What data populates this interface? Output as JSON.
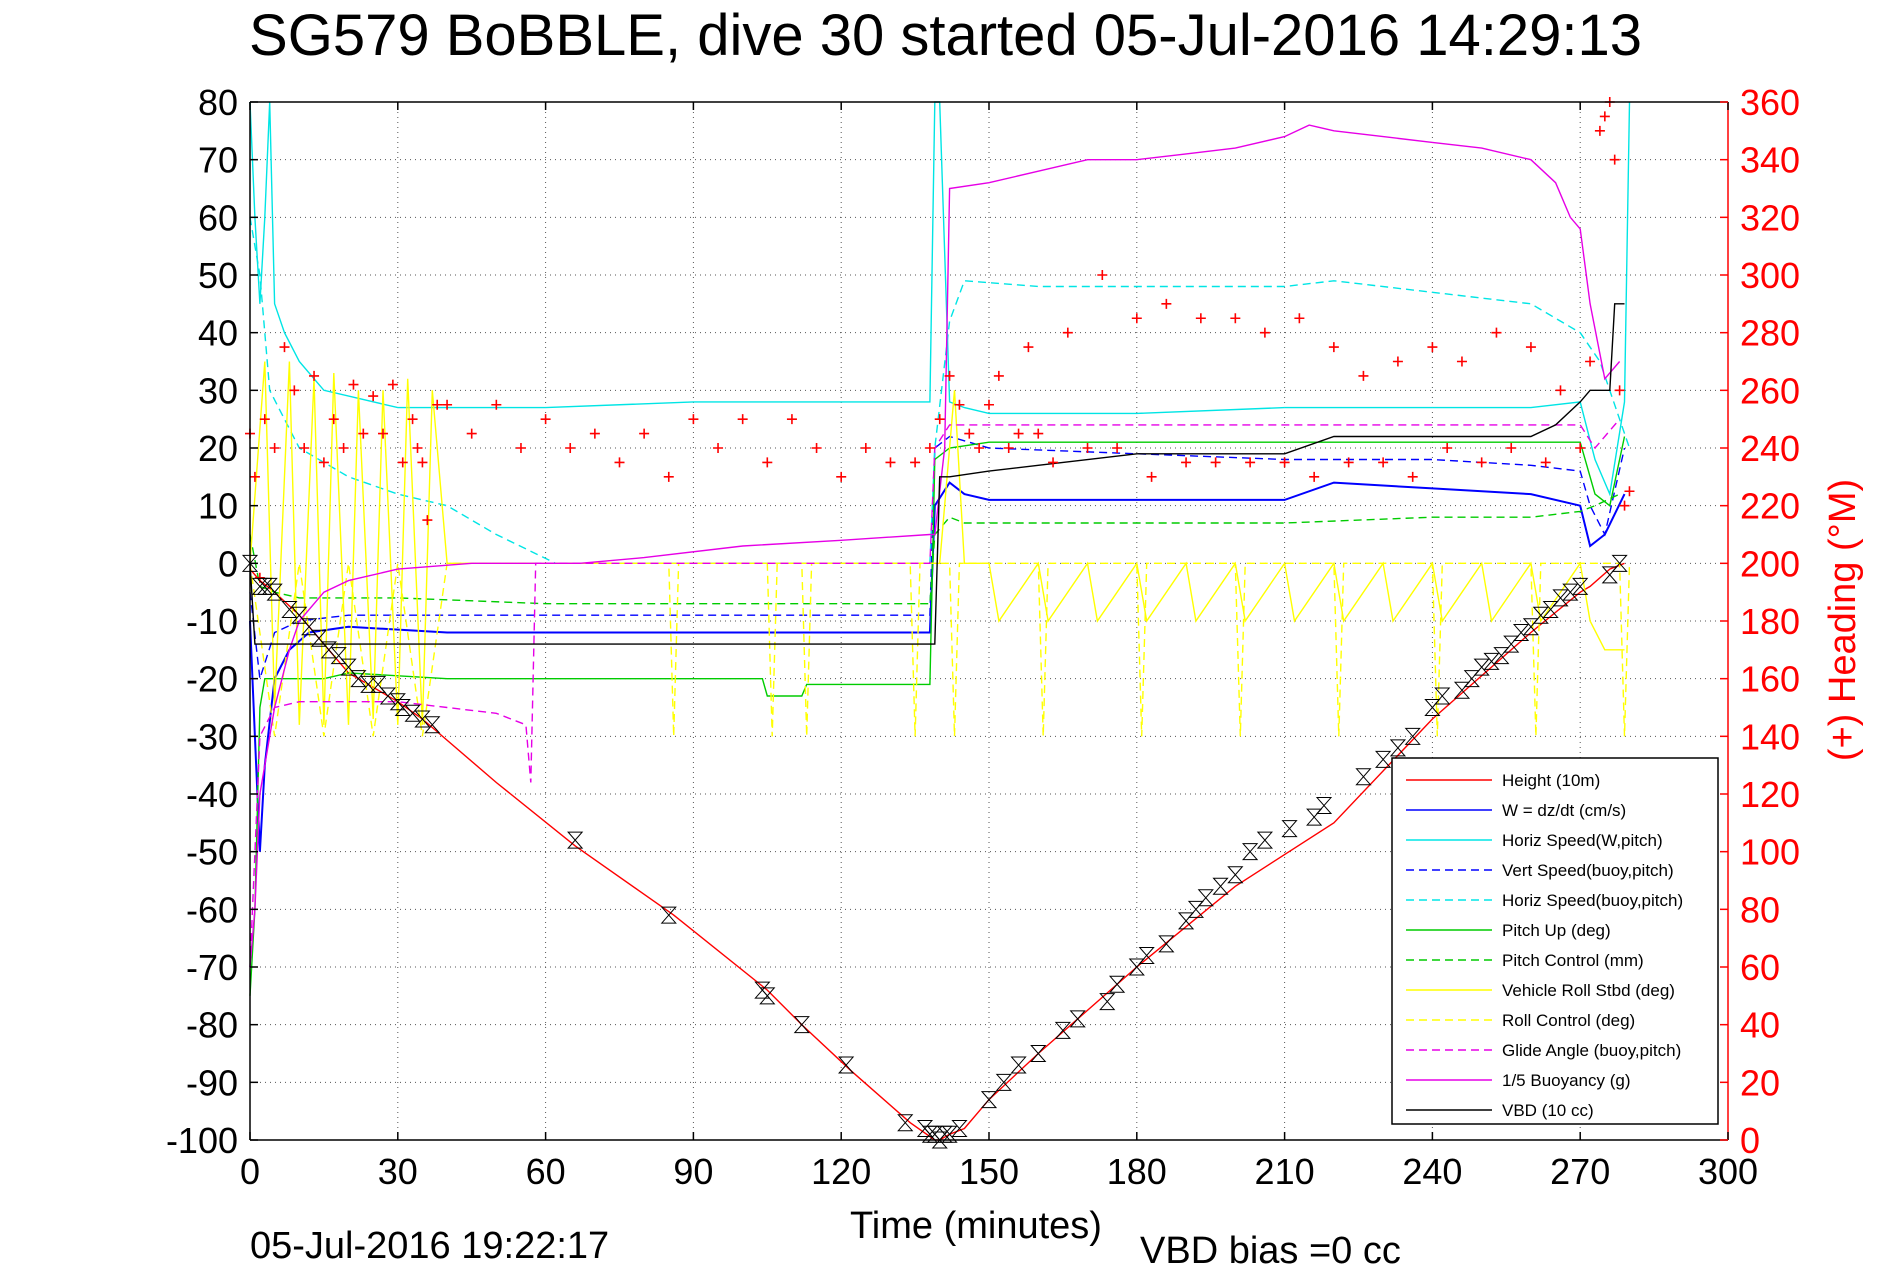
{
  "chart_data": {
    "type": "line",
    "title": "SG579 BoBBLE, dive 30 started 05-Jul-2016 14:29:13",
    "xlabel": "Time (minutes)",
    "ylabel": "",
    "y2label": "(+) Heading (°M)",
    "footer_left": "05-Jul-2016 19:22:17",
    "footer_right": "VBD bias =0 cc",
    "xlim": [
      0,
      300
    ],
    "ylim": [
      -100,
      80
    ],
    "y2lim": [
      0,
      360
    ],
    "xticks": [
      0,
      30,
      60,
      90,
      120,
      150,
      180,
      210,
      240,
      270,
      300
    ],
    "yticks": [
      80,
      70,
      60,
      50,
      40,
      30,
      20,
      10,
      0,
      -10,
      -20,
      -30,
      -40,
      -50,
      -60,
      -70,
      -80,
      -90,
      -100
    ],
    "y2ticks": [
      360,
      340,
      320,
      300,
      280,
      260,
      240,
      220,
      200,
      180,
      160,
      140,
      120,
      100,
      80,
      60,
      40,
      20,
      0
    ],
    "grid": true,
    "legend_position": "bottom-right",
    "series": [
      {
        "name": "Height (10m)",
        "color": "#ff0000",
        "dash": "solid",
        "x": [
          0,
          2,
          5,
          10,
          20,
          30,
          35,
          50,
          66,
          86,
          105,
          112,
          122,
          134,
          139,
          140,
          142,
          145,
          150,
          160,
          180,
          200,
          220,
          240,
          260,
          270,
          272,
          276,
          279
        ],
        "y": [
          -1,
          -3,
          -5,
          -9,
          -19,
          -24,
          -27,
          -38,
          -49,
          -61,
          -74,
          -80,
          -88,
          -97,
          -100,
          -100,
          -99,
          -98,
          -93,
          -85,
          -70,
          -56,
          -45,
          -27,
          -12,
          -5,
          -4,
          -1,
          0
        ]
      },
      {
        "name": "W = dz/dt (cm/s)",
        "color": "#0000ff",
        "dash": "solid",
        "x": [
          0,
          1,
          2,
          3,
          5,
          8,
          12,
          20,
          40,
          60,
          80,
          100,
          120,
          138,
          139,
          142,
          145,
          150,
          180,
          200,
          210,
          220,
          240,
          260,
          270,
          272,
          275,
          279
        ],
        "y": [
          -10,
          -30,
          -50,
          -35,
          -20,
          -15,
          -12,
          -11,
          -12,
          -12,
          -12,
          -12,
          -12,
          -12,
          10,
          14,
          12,
          11,
          11,
          11,
          11,
          14,
          13,
          12,
          10,
          3,
          5,
          12
        ]
      },
      {
        "name": "Horiz Speed(W,pitch)",
        "color": "#00e5e5",
        "dash": "solid",
        "x": [
          0,
          1,
          2,
          3,
          4,
          5,
          7,
          10,
          15,
          30,
          60,
          90,
          120,
          138,
          139,
          140,
          142,
          145,
          150,
          180,
          210,
          240,
          260,
          270,
          273,
          276,
          279,
          280
        ],
        "y": [
          80,
          60,
          45,
          60,
          80,
          45,
          40,
          35,
          30,
          27,
          27,
          28,
          28,
          28,
          80,
          80,
          28,
          27,
          26,
          26,
          27,
          27,
          27,
          28,
          18,
          12,
          28,
          80
        ]
      },
      {
        "name": "Vert Speed(buoy,pitch)",
        "color": "#0000ff",
        "dash": "dashed",
        "x": [
          0,
          2,
          5,
          10,
          20,
          40,
          60,
          80,
          100,
          120,
          138,
          139,
          142,
          150,
          180,
          210,
          240,
          260,
          270,
          272,
          275,
          279
        ],
        "y": [
          -5,
          -20,
          -12,
          -10,
          -9,
          -9,
          -9,
          -9,
          -9,
          -9,
          -9,
          20,
          22,
          20,
          19,
          18,
          18,
          17,
          16,
          10,
          5,
          20
        ]
      },
      {
        "name": "Horiz Speed(buoy,pitch)",
        "color": "#00e5e5",
        "dash": "dashed",
        "x": [
          0,
          2,
          4,
          7,
          10,
          20,
          30,
          40,
          50,
          62,
          66,
          138,
          139,
          142,
          145,
          160,
          180,
          200,
          210,
          220,
          240,
          260,
          270,
          274,
          278,
          280
        ],
        "y": [
          60,
          50,
          30,
          25,
          20,
          15,
          12,
          10,
          5,
          0,
          0,
          0,
          20,
          42,
          49,
          48,
          48,
          48,
          48,
          49,
          47,
          45,
          40,
          35,
          25,
          20
        ]
      },
      {
        "name": "Pitch Up (deg)",
        "color": "#00cc00",
        "dash": "solid",
        "x": [
          0,
          1,
          2,
          3,
          5,
          10,
          15,
          20,
          40,
          60,
          80,
          100,
          104,
          105,
          112,
          113,
          120,
          138,
          139,
          142,
          150,
          180,
          210,
          240,
          260,
          270,
          273,
          276,
          279
        ],
        "y": [
          -75,
          -60,
          -25,
          -20,
          -20,
          -20,
          -20,
          -19,
          -20,
          -20,
          -20,
          -20,
          -20,
          -23,
          -23,
          -21,
          -21,
          -21,
          18,
          20,
          21,
          21,
          21,
          21,
          21,
          21,
          12,
          10,
          22
        ]
      },
      {
        "name": "Pitch Control (mm)",
        "color": "#00cc00",
        "dash": "dashed",
        "x": [
          0,
          2,
          5,
          10,
          30,
          60,
          90,
          120,
          138,
          139,
          142,
          145,
          150,
          180,
          210,
          240,
          260,
          270,
          273,
          278
        ],
        "y": [
          5,
          -4,
          -5,
          -6,
          -6,
          -7,
          -7,
          -7,
          -7,
          5,
          8,
          7,
          7,
          7,
          7,
          8,
          8,
          9,
          10,
          12
        ]
      },
      {
        "name": "Vehicle Roll Stbd (deg)",
        "color": "#ffff00",
        "dash": "solid",
        "x": [
          0,
          3,
          5,
          8,
          10,
          13,
          15,
          17,
          20,
          22,
          25,
          27,
          30,
          32,
          35,
          37,
          40,
          60,
          80,
          100,
          120,
          138,
          140,
          143,
          145,
          150,
          152,
          160,
          162,
          170,
          172,
          180,
          182,
          190,
          192,
          200,
          202,
          210,
          212,
          220,
          222,
          230,
          232,
          240,
          242,
          250,
          252,
          260,
          262,
          270,
          272,
          275,
          279
        ],
        "y": [
          0,
          35,
          -25,
          35,
          -28,
          32,
          -28,
          33,
          -28,
          30,
          -27,
          30,
          -28,
          32,
          -28,
          30,
          0,
          0,
          0,
          0,
          0,
          0,
          0,
          30,
          0,
          0,
          -10,
          0,
          -10,
          0,
          -10,
          0,
          -10,
          0,
          -10,
          0,
          -10,
          0,
          -10,
          0,
          -10,
          0,
          -10,
          0,
          -10,
          0,
          -10,
          0,
          -10,
          0,
          -10,
          -15,
          -15
        ]
      },
      {
        "name": "Roll Control (deg)",
        "color": "#ffff00",
        "dash": "dashed",
        "x": [
          0,
          5,
          10,
          15,
          20,
          25,
          30,
          35,
          40,
          85,
          86,
          87,
          105,
          106,
          107,
          112,
          113,
          114,
          134,
          135,
          136,
          142,
          143,
          144,
          160,
          161,
          162,
          180,
          181,
          182,
          200,
          201,
          202,
          220,
          221,
          222,
          240,
          241,
          242,
          260,
          261,
          262,
          278,
          279,
          280
        ],
        "y": [
          0,
          -30,
          0,
          -30,
          0,
          -30,
          0,
          -30,
          0,
          0,
          -30,
          0,
          0,
          -30,
          0,
          0,
          -30,
          0,
          0,
          -30,
          0,
          0,
          -30,
          0,
          0,
          -30,
          0,
          0,
          -30,
          0,
          0,
          -30,
          0,
          0,
          -30,
          0,
          0,
          -30,
          0,
          0,
          -30,
          0,
          0,
          -30,
          0
        ]
      },
      {
        "name": "Glide Angle (buoy,pitch)",
        "color": "#e600e6",
        "dash": "dashed",
        "x": [
          0,
          2,
          5,
          10,
          20,
          30,
          40,
          50,
          56,
          57,
          58,
          60,
          62,
          64,
          66,
          67,
          138,
          139,
          142,
          150,
          180,
          210,
          240,
          260,
          270,
          273,
          278
        ],
        "y": [
          -70,
          -30,
          -25,
          -24,
          -24,
          -24,
          -25,
          -26,
          -28,
          -38,
          0,
          0,
          0,
          0,
          0,
          0,
          0,
          20,
          24,
          24,
          24,
          24,
          24,
          24,
          24,
          20,
          25
        ]
      },
      {
        "name": "1/5 Buoyancy (g)",
        "color": "#e600e6",
        "dash": "solid",
        "x": [
          0,
          1,
          2,
          3,
          5,
          8,
          10,
          15,
          20,
          30,
          45,
          60,
          67,
          80,
          100,
          120,
          138,
          139,
          141,
          142,
          150,
          160,
          170,
          180,
          190,
          200,
          210,
          215,
          220,
          230,
          240,
          250,
          260,
          265,
          268,
          270,
          272,
          275,
          278
        ],
        "y": [
          -70,
          -60,
          -40,
          -35,
          -25,
          -15,
          -10,
          -5,
          -3,
          -1,
          0,
          0,
          0,
          1,
          3,
          4,
          5,
          5,
          20,
          65,
          66,
          68,
          70,
          70,
          71,
          72,
          74,
          76,
          75,
          74,
          73,
          72,
          70,
          66,
          60,
          58,
          45,
          32,
          35
        ]
      },
      {
        "name": "VBD (10 cc)",
        "color": "#000000",
        "dash": "solid",
        "x": [
          0,
          1,
          2,
          139,
          140,
          142,
          150,
          160,
          180,
          210,
          220,
          260,
          265,
          270,
          272,
          276,
          277,
          279
        ],
        "y": [
          0,
          -14,
          -14,
          -14,
          15,
          15,
          16,
          17,
          19,
          19,
          22,
          22,
          24,
          28,
          30,
          30,
          45,
          45
        ]
      }
    ],
    "heading_series": {
      "name": "(+) Heading (°M)",
      "color": "#ff0000",
      "marker": "+",
      "x": [
        0,
        1,
        2,
        3,
        5,
        7,
        9,
        11,
        13,
        15,
        17,
        19,
        21,
        23,
        25,
        27,
        29,
        31,
        33,
        34,
        35,
        36,
        38,
        40,
        45,
        50,
        55,
        60,
        65,
        70,
        75,
        80,
        85,
        90,
        95,
        100,
        105,
        110,
        115,
        120,
        125,
        130,
        135,
        138,
        140,
        142,
        144,
        146,
        148,
        150,
        152,
        154,
        156,
        158,
        160,
        163,
        166,
        170,
        173,
        176,
        180,
        183,
        186,
        190,
        193,
        196,
        200,
        203,
        206,
        210,
        213,
        216,
        220,
        223,
        226,
        230,
        233,
        236,
        240,
        243,
        246,
        250,
        253,
        256,
        260,
        263,
        266,
        270,
        272,
        274,
        275,
        276,
        277,
        278,
        279,
        280
      ],
      "y": [
        245,
        230,
        195,
        250,
        240,
        275,
        260,
        240,
        265,
        235,
        250,
        240,
        262,
        245,
        258,
        245,
        262,
        235,
        250,
        240,
        235,
        215,
        255,
        255,
        245,
        255,
        240,
        250,
        240,
        245,
        235,
        245,
        230,
        250,
        240,
        250,
        235,
        250,
        240,
        230,
        240,
        235,
        235,
        240,
        250,
        265,
        255,
        245,
        240,
        255,
        265,
        240,
        245,
        275,
        245,
        235,
        280,
        240,
        300,
        240,
        285,
        230,
        290,
        235,
        285,
        235,
        285,
        235,
        280,
        235,
        285,
        230,
        275,
        235,
        265,
        235,
        270,
        230,
        275,
        240,
        270,
        235,
        280,
        240,
        275,
        235,
        260,
        240,
        270,
        350,
        355,
        360,
        340,
        260,
        220,
        225
      ]
    },
    "profile_markers": {
      "name": "Height markers",
      "marker": "hourglass",
      "x": [
        0,
        2,
        3,
        4,
        5,
        8,
        10,
        12,
        14,
        16,
        18,
        20,
        22,
        24,
        26,
        28,
        30,
        31,
        33,
        35,
        37,
        66,
        85,
        104,
        105,
        112,
        121,
        133,
        137,
        138,
        139,
        140,
        141,
        142,
        144,
        150,
        153,
        156,
        160,
        165,
        168,
        174,
        176,
        180,
        182,
        186,
        190,
        192,
        194,
        197,
        200,
        203,
        206,
        211,
        216,
        218,
        226,
        230,
        233,
        236,
        240,
        242,
        246,
        248,
        250,
        252,
        254,
        256,
        258,
        260,
        262,
        264,
        266,
        268,
        270,
        276,
        278
      ],
      "y": [
        0,
        -4,
        -4,
        -4,
        -5,
        -8,
        -9,
        -11,
        -13,
        -15,
        -16,
        -18,
        -20,
        -21,
        -21,
        -23,
        -24,
        -25,
        -26,
        -27,
        -28,
        -48,
        -61,
        -74,
        -75,
        -80,
        -87,
        -97,
        -98,
        -99,
        -99,
        -100,
        -99,
        -99,
        -98,
        -93,
        -90,
        -87,
        -85,
        -81,
        -79,
        -76,
        -73,
        -70,
        -68,
        -66,
        -62,
        -60,
        -58,
        -56,
        -54,
        -50,
        -48,
        -46,
        -44,
        -42,
        -37,
        -34,
        -32,
        -30,
        -25,
        -23,
        -22,
        -20,
        -18,
        -17,
        -16,
        -14,
        -12,
        -11,
        -9,
        -8,
        -6,
        -5,
        -4,
        -2,
        0
      ]
    }
  }
}
